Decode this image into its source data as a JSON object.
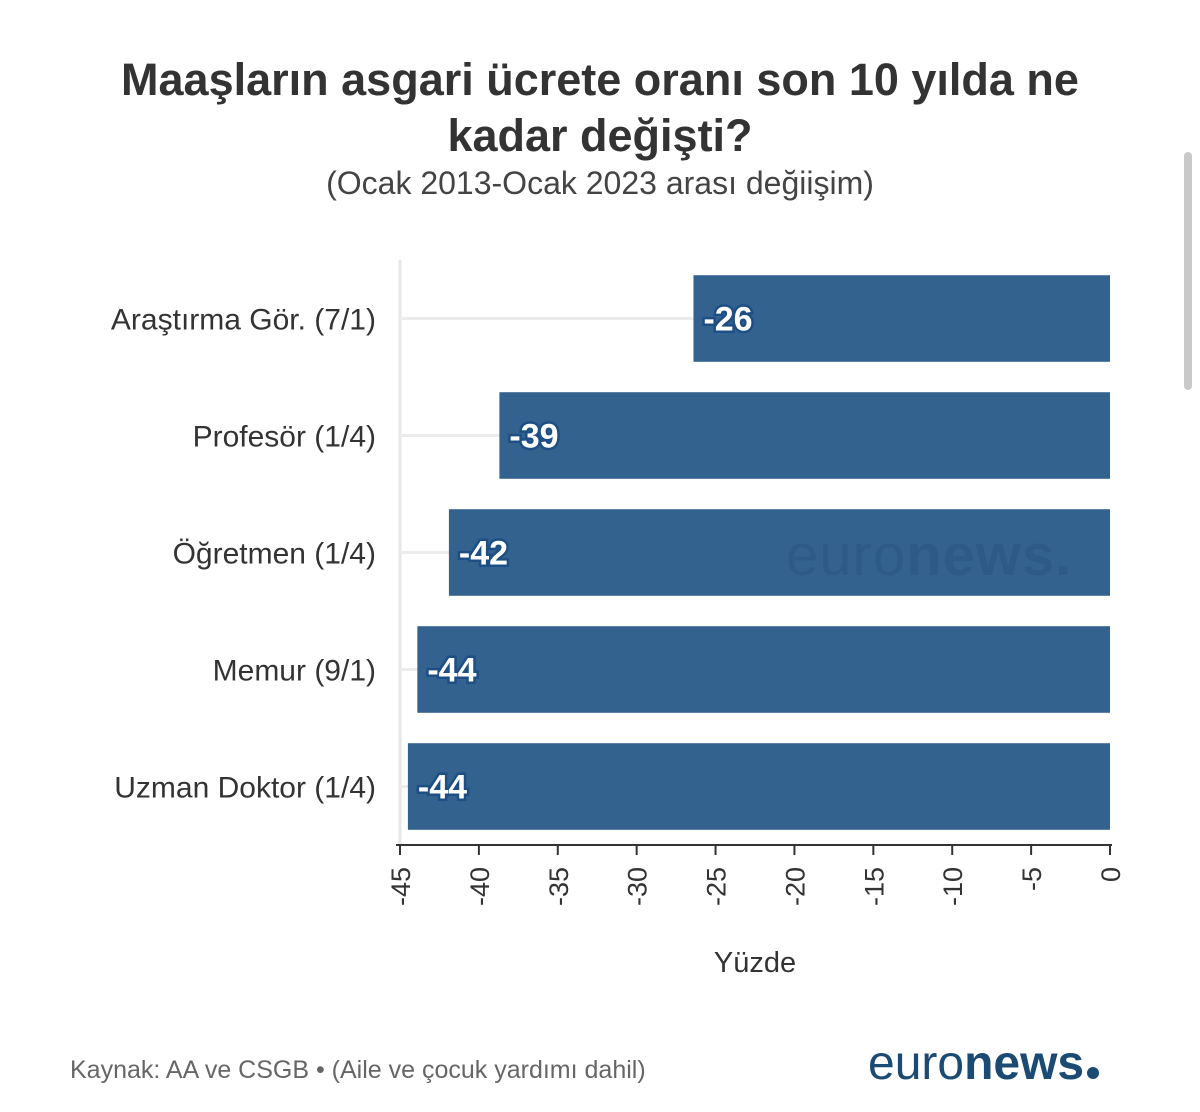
{
  "chart_data": {
    "type": "bar",
    "orientation": "horizontal",
    "title_lines": [
      "Maaşların asgari ücrete oranı son 10 yılda ne",
      "kadar değişti?"
    ],
    "subtitle": "(Ocak 2013-Ocak 2023 arası değiişim)",
    "categories": [
      "Araştırma Gör. (7/1)",
      "Profesör (1/4)",
      "Öğretmen (1/4)",
      "Memur (9/1)",
      "Uzman Doktor (1/4)"
    ],
    "values": [
      -26.4,
      -38.7,
      -41.9,
      -43.9,
      -44.5
    ],
    "value_labels": [
      "-26",
      "-39",
      "-42",
      "-44",
      "-44"
    ],
    "xlabel": "Yüzde",
    "xlim": [
      -45,
      0
    ],
    "xticks": [
      -45,
      -40,
      -35,
      -30,
      -25,
      -20,
      -15,
      -10,
      -5,
      0
    ],
    "xtick_labels": [
      "-45",
      "-40",
      "-35",
      "-30",
      "-25",
      "-20",
      "-15",
      "-10",
      "-5",
      "0"
    ],
    "bar_color": "#34628f",
    "grid": true,
    "watermark": {
      "part1": "euro",
      "part2": "news."
    }
  },
  "footer": {
    "source": "Kaynak: AA ve CSGB • (Aile ve çocuk yardımı dahil)",
    "brand_part1": "euro",
    "brand_part2": "news"
  }
}
